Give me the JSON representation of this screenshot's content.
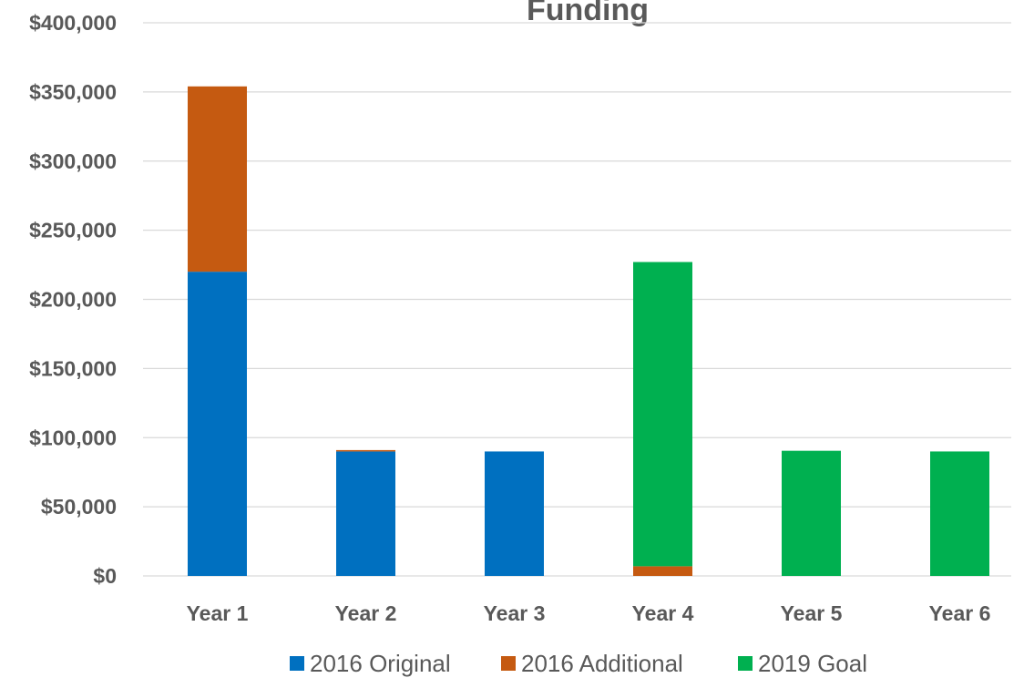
{
  "chart_data": {
    "type": "bar",
    "stacked": true,
    "title": "Funding",
    "categories": [
      "Year 1",
      "Year 2",
      "Year 3",
      "Year 4",
      "Year 5",
      "Year 6"
    ],
    "series": [
      {
        "name": "2016 Original",
        "color": "#0070c0",
        "values": [
          220000,
          90000,
          90000,
          0,
          0,
          0
        ]
      },
      {
        "name": "2016 Additional",
        "color": "#c55a11",
        "values": [
          134000,
          1000,
          0,
          7000,
          0,
          0
        ]
      },
      {
        "name": "2019 Goal",
        "color": "#00b050",
        "values": [
          0,
          0,
          0,
          220000,
          90500,
          90000
        ]
      }
    ],
    "ylim": [
      0,
      400000
    ],
    "y_ticks": [
      "$0",
      "$50,000",
      "$100,000",
      "$150,000",
      "$200,000",
      "$250,000",
      "$300,000",
      "$350,000",
      "$400,000"
    ],
    "y_tick_values": [
      0,
      50000,
      100000,
      150000,
      200000,
      250000,
      300000,
      350000,
      400000
    ],
    "grid": true,
    "legend_position": "bottom"
  }
}
